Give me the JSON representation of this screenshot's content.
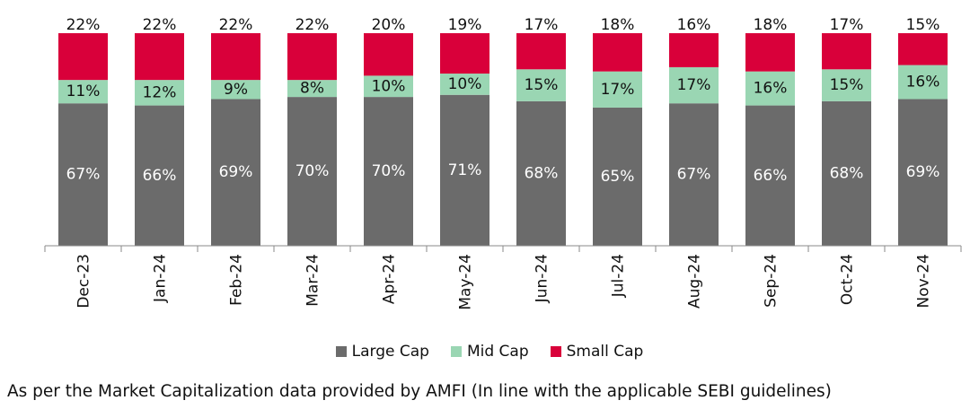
{
  "chart_data": {
    "type": "bar",
    "stacked": true,
    "normalized": true,
    "categories": [
      "Dec-23",
      "Jan-24",
      "Feb-24",
      "Mar-24",
      "Apr-24",
      "May-24",
      "Jun-24",
      "Jul-24",
      "Aug-24",
      "Sep-24",
      "Oct-24",
      "Nov-24"
    ],
    "series": [
      {
        "name": "Large Cap",
        "color": "#6b6b6b",
        "labels": [
          "67%",
          "66%",
          "69%",
          "70%",
          "70%",
          "71%",
          "68%",
          "65%",
          "67%",
          "66%",
          "68%",
          "69%"
        ],
        "values": [
          67,
          66,
          69,
          70,
          70,
          71,
          68,
          65,
          67,
          66,
          68,
          69
        ]
      },
      {
        "name": "Mid Cap",
        "color": "#9ad6b3",
        "labels": [
          "11%",
          "12%",
          "9%",
          "8%",
          "10%",
          "10%",
          "15%",
          "17%",
          "17%",
          "16%",
          "15%",
          "16%"
        ],
        "values": [
          11,
          12,
          9,
          8,
          10,
          10,
          15,
          17,
          17,
          16,
          15,
          16
        ]
      },
      {
        "name": "Small Cap",
        "color": "#d9003a",
        "labels": [
          "22%",
          "22%",
          "22%",
          "22%",
          "20%",
          "19%",
          "17%",
          "18%",
          "16%",
          "18%",
          "17%",
          "15%"
        ],
        "values": [
          22,
          22,
          22,
          22,
          20,
          19,
          17,
          18,
          16,
          18,
          17,
          15
        ]
      }
    ],
    "legend_position": "bottom",
    "grid": false
  },
  "footnote": "As per the Market Capitalization data provided by AMFI (In line with the applicable SEBI guidelines)"
}
